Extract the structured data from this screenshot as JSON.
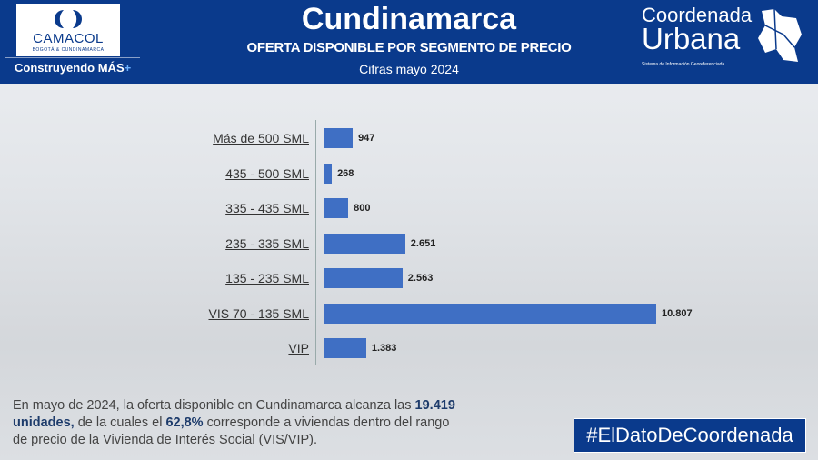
{
  "header": {
    "title": "Cundinamarca",
    "subtitle": "OFERTA DISPONIBLE POR SEGMENTO DE PRECIO",
    "note": "Cifras mayo 2024",
    "logo_left": {
      "name": "CAMACOL",
      "sub": "BOGOTÁ & CUNDINAMARCA",
      "tagline": "Construyendo MÁS",
      "tagline_plus": "+"
    },
    "logo_right": {
      "line1": "Coordenada",
      "line2": "Urbana",
      "sub": "Sistema de Información Georeferenciada"
    }
  },
  "chart_data": {
    "type": "bar",
    "orientation": "horizontal",
    "categories": [
      "Más de 500 SML",
      "435 - 500 SML",
      "335 - 435 SML",
      "235 - 335 SML",
      "135 - 235 SML",
      "VIS 70 - 135 SML",
      "VIP"
    ],
    "values": [
      947,
      268,
      800,
      2651,
      2563,
      10807,
      1383
    ],
    "value_labels": [
      "947",
      "268",
      "800",
      "2.651",
      "2.563",
      "10.807",
      "1.383"
    ],
    "bar_color": "#3f6fc4",
    "grid": false
  },
  "footer": {
    "p1": "En mayo de 2024, la oferta disponible en Cundinamarca alcanza las ",
    "b1": "19.419 unidades,",
    "p2": " de la cuales el ",
    "b2": "62,8%",
    "p3": " corresponde a viviendas dentro del rango de precio de la Vivienda de Interés Social (VIS/VIP).",
    "hashtag": "#ElDatoDeCoordenada"
  }
}
